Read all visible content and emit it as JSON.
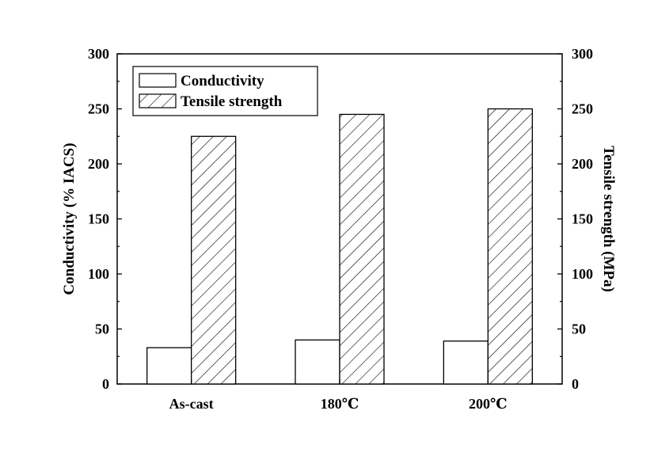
{
  "chart_data": {
    "type": "bar",
    "categories": [
      "As-cast",
      "180℃",
      "200℃"
    ],
    "series": [
      {
        "name": "Conductivity",
        "axis": "left",
        "pattern": "none",
        "fill": "#ffffff",
        "values": [
          33,
          40,
          39
        ]
      },
      {
        "name": "Tensile strength",
        "axis": "right",
        "pattern": "diagonal-hatch",
        "fill": "#ffffff",
        "values": [
          225,
          245,
          250
        ]
      }
    ],
    "xlabel": "",
    "ylabel": "Conductivity (% IACS)",
    "y2label": "Tensile strength (MPa)",
    "ylim": [
      0,
      300
    ],
    "y2lim": [
      0,
      300
    ],
    "yticks": [
      "0",
      "50",
      "100",
      "150",
      "200",
      "250",
      "300"
    ],
    "y2ticks": [
      "0",
      "50",
      "100",
      "150",
      "200",
      "250",
      "300"
    ],
    "grid": false,
    "legend_position": "top-left",
    "colors": {
      "line": "#000000",
      "background": "#ffffff"
    }
  }
}
